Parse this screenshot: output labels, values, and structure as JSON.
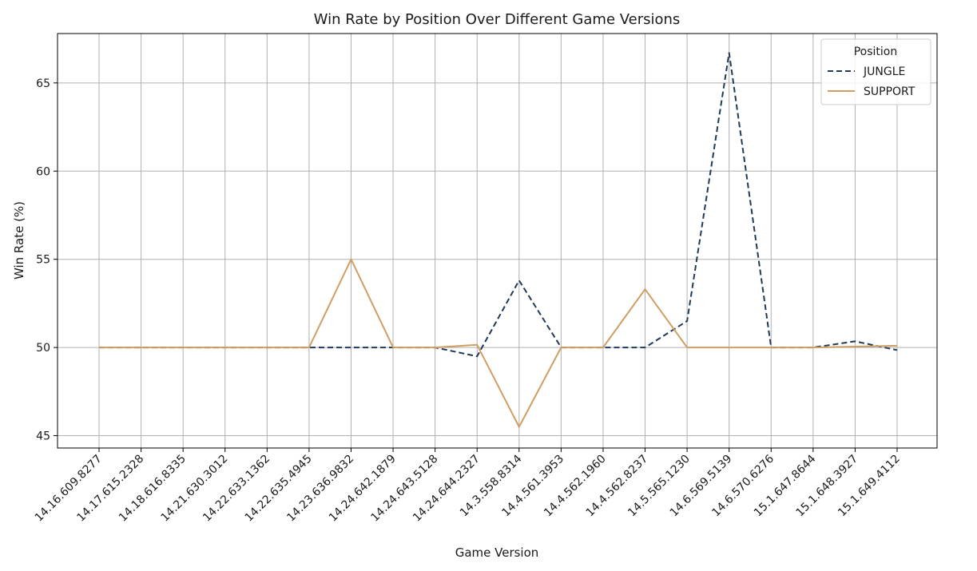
{
  "chart_data": {
    "type": "line",
    "title": "Win Rate by Position Over Different Game Versions",
    "xlabel": "Game Version",
    "ylabel": "Win Rate (%)",
    "ylim": [
      44.3,
      67.8
    ],
    "yticks": [
      45,
      50,
      55,
      60,
      65
    ],
    "grid": true,
    "legend": {
      "title": "Position",
      "placement": "top-right"
    },
    "categories": [
      "14.16.609.8277",
      "14.17.615.2328",
      "14.18.616.8335",
      "14.21.630.3012",
      "14.22.633.1362",
      "14.22.635.4945",
      "14.23.636.9832",
      "14.24.642.1879",
      "14.24.643.5128",
      "14.24.644.2327",
      "14.3.558.8314",
      "14.4.561.3953",
      "14.4.562.1960",
      "14.4.562.8237",
      "14.5.565.1230",
      "14.6.569.5139",
      "14.6.570.6276",
      "15.1.647.8644",
      "15.1.648.3927",
      "15.1.649.4112"
    ],
    "series": [
      {
        "name": "JUNGLE",
        "color": "#1f3b57",
        "style": "dashed",
        "values": [
          50,
          50,
          50,
          50,
          50,
          50,
          50,
          50,
          50,
          49.5,
          53.8,
          50,
          50,
          50,
          51.5,
          66.7,
          50,
          50,
          50.35,
          49.85
        ]
      },
      {
        "name": "SUPPORT",
        "color": "#d09e62",
        "style": "solid",
        "values": [
          50,
          50,
          50,
          50,
          50,
          50,
          55,
          50,
          50,
          50.15,
          45.5,
          50,
          50,
          53.3,
          50,
          50,
          50,
          50,
          50.05,
          50.1
        ]
      }
    ]
  }
}
